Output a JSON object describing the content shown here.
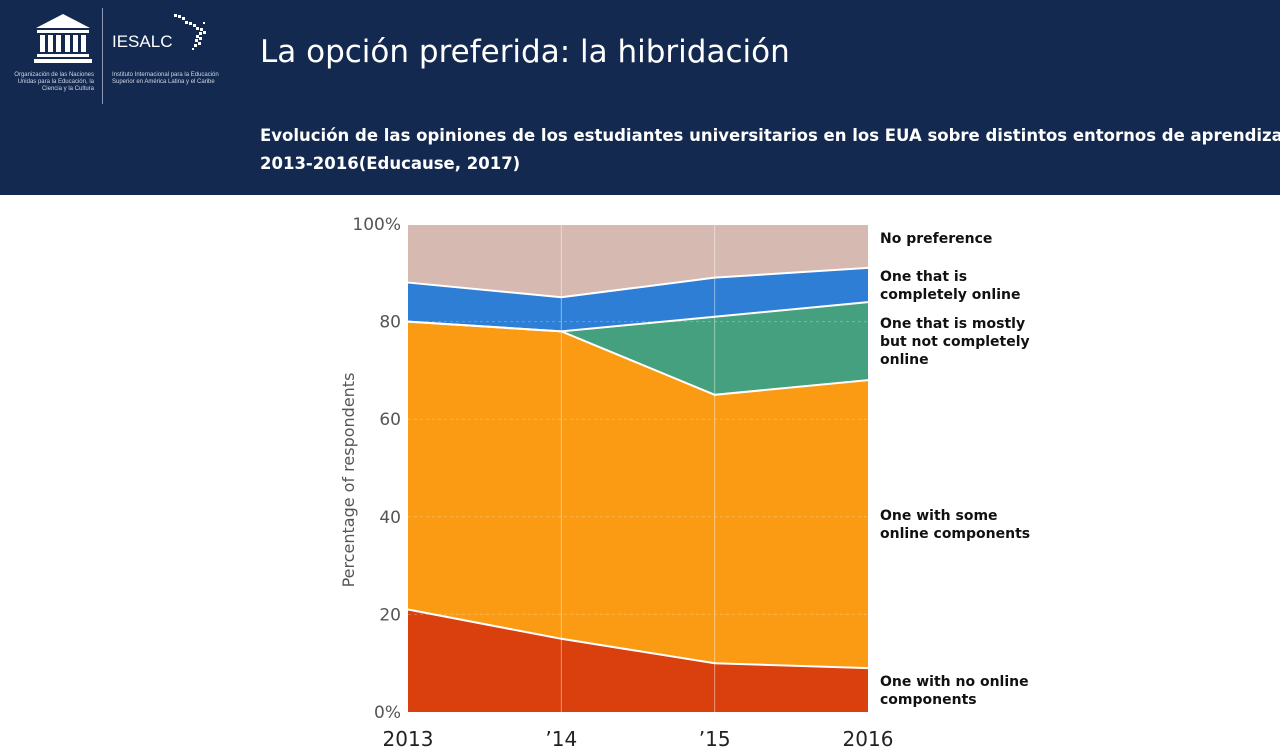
{
  "header": {
    "logo_unesco_text": "Organización de las Naciones Unidas para la Educación, la Ciencia y la Cultura",
    "logo_iesalc_name": "IESALC",
    "logo_iesalc_text": "Instituto Internacional para la Educación Superior en América Latina y el Caribe",
    "title": "La opción preferida: la hibridación",
    "subtitle_line1": "Evolución de las opiniones de los estudiantes universitarios en los EUA sobre distintos entornos de aprendizaje",
    "subtitle_line2": "2013-2016(Educause, 2017)",
    "background_color": "#13294f"
  },
  "chart_data": {
    "type": "area",
    "stacked": true,
    "x": [
      "2013",
      "’14",
      "’15",
      "2016"
    ],
    "ylabel": "Percentage of respondents",
    "ylim": [
      0,
      100
    ],
    "yticks": [
      "0%",
      "20",
      "40",
      "60",
      "80",
      "100%"
    ],
    "series": [
      {
        "name": "One with no online components",
        "values": [
          21,
          15,
          10,
          9
        ],
        "color": "#d9400d"
      },
      {
        "name": "One with some online components",
        "values": [
          59,
          63,
          55,
          59
        ],
        "color": "#fb9b13"
      },
      {
        "name": "One that is mostly but not completely online",
        "values": [
          0,
          0,
          16,
          16
        ],
        "color": "#45a07f"
      },
      {
        "name": "One that is completely online",
        "values": [
          8,
          7,
          8,
          7
        ],
        "color": "#2e7ed6"
      },
      {
        "name": "No preference",
        "values": [
          12,
          15,
          11,
          9
        ],
        "color": "#d6bab2"
      }
    ],
    "legend_labels": [
      [
        "No preference"
      ],
      [
        "One that is",
        "completely online"
      ],
      [
        "One that is mostly",
        "but not completely",
        "online"
      ],
      [
        "One with some",
        "online components"
      ],
      [
        "One with no online",
        "components"
      ]
    ],
    "legend_position": "right"
  }
}
